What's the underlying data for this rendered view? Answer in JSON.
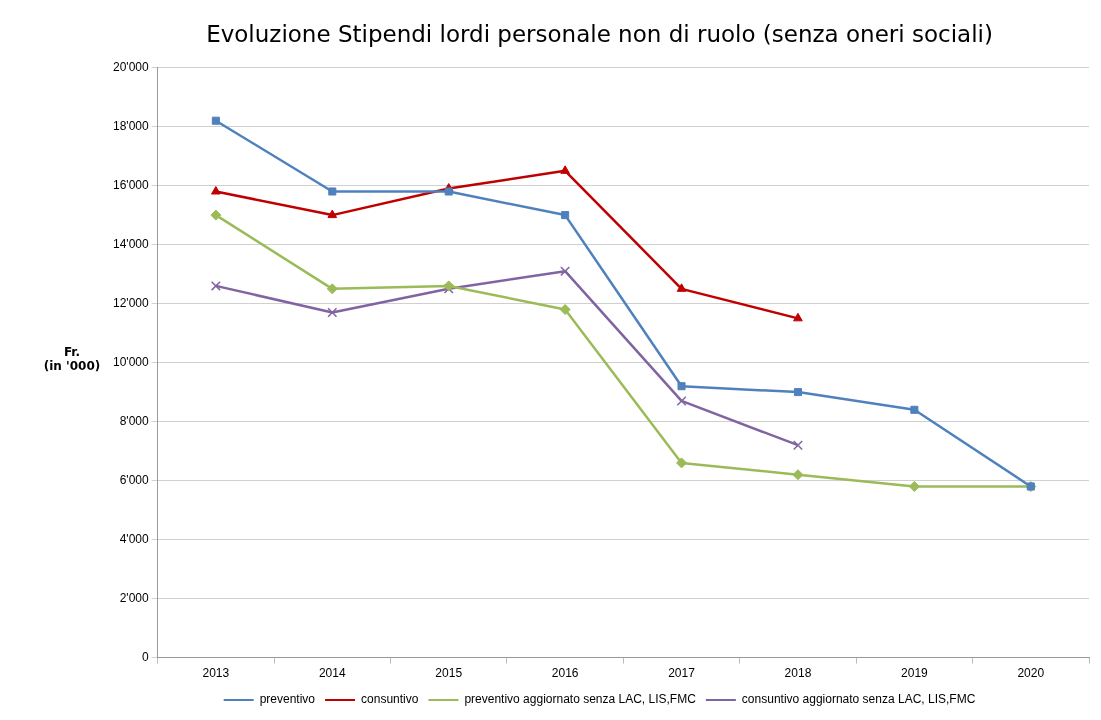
{
  "chart_data": {
    "type": "line",
    "title": "Evoluzione Stipendi lordi personale non di ruolo (senza oneri sociali)",
    "ylabel": "Fr. (in '000)",
    "categories": [
      "2013",
      "2014",
      "2015",
      "2016",
      "2017",
      "2018",
      "2019",
      "2020"
    ],
    "ylim": [
      0,
      20000
    ],
    "yticks": [
      {
        "value": 0,
        "label": "0"
      },
      {
        "value": 2000,
        "label": "2'000"
      },
      {
        "value": 4000,
        "label": "4'000"
      },
      {
        "value": 6000,
        "label": "6'000"
      },
      {
        "value": 8000,
        "label": "8'000"
      },
      {
        "value": 10000,
        "label": "10'000"
      },
      {
        "value": 12000,
        "label": "12'000"
      },
      {
        "value": 14000,
        "label": "14'000"
      },
      {
        "value": 16000,
        "label": "16'000"
      },
      {
        "value": 18000,
        "label": "18'000"
      },
      {
        "value": 20000,
        "label": "20'000"
      }
    ],
    "grid": "y",
    "legend": "bottom",
    "series": [
      {
        "name": "preventivo",
        "color": "#4f81bd",
        "marker": "square",
        "values": [
          18200,
          15800,
          15800,
          15000,
          9200,
          9000,
          8400,
          5800
        ]
      },
      {
        "name": "consuntivo",
        "color": "#c00000",
        "marker": "triangle",
        "values": [
          15800,
          15000,
          15900,
          16500,
          12500,
          11500,
          null,
          null
        ]
      },
      {
        "name": "preventivo aggiornato senza LAC, LIS,FMC",
        "color": "#9bbb59",
        "marker": "diamond",
        "values": [
          15000,
          12500,
          12600,
          11800,
          6600,
          6200,
          5800,
          5800
        ]
      },
      {
        "name": "consuntivo aggiornato senza LAC, LIS,FMC",
        "color": "#8064a2",
        "marker": "cross",
        "values": [
          12600,
          11700,
          12500,
          13100,
          8700,
          7200,
          null,
          null
        ]
      }
    ]
  }
}
